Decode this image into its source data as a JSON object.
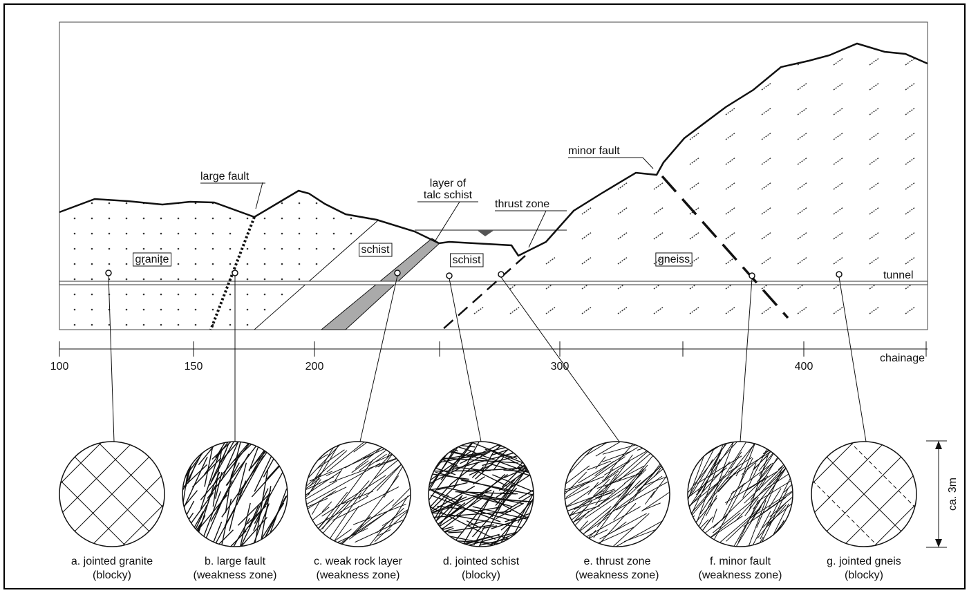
{
  "labels": {
    "large_fault": "large fault",
    "talc_schist": [
      "layer of",
      "talc schist"
    ],
    "thrust_zone": "thrust zone",
    "minor_fault": "minor fault",
    "tunnel": "tunnel"
  },
  "units": [
    "granite",
    "schist",
    "schist",
    "gneiss"
  ],
  "chainage": {
    "label": "chainage",
    "ticks": [
      "100",
      "150",
      "200",
      "300",
      "400"
    ]
  },
  "scale": "ca. 3m",
  "samples": [
    {
      "title": "a. jointed granite",
      "note": "(blocky)"
    },
    {
      "title": "b. large fault",
      "note": "(weakness zone)"
    },
    {
      "title": "c. weak rock layer",
      "note": "(weakness zone)"
    },
    {
      "title": "d. jointed schist",
      "note": "(blocky)"
    },
    {
      "title": "e. thrust zone",
      "note": "(weakness zone)"
    },
    {
      "title": "f. minor fault",
      "note": "(weakness zone)"
    },
    {
      "title": "g. jointed gneis",
      "note": "(blocky)"
    }
  ]
}
